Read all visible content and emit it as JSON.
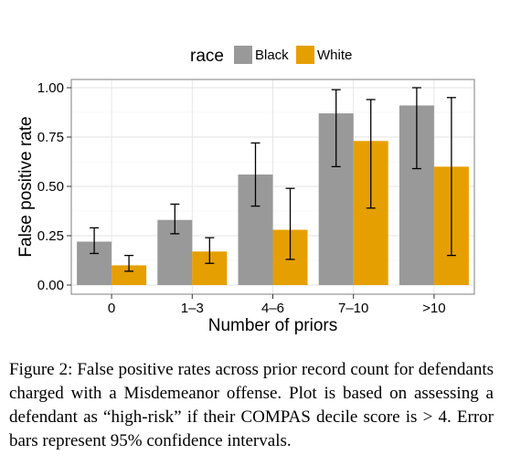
{
  "chart_data": {
    "type": "bar",
    "xlabel": "Number of priors",
    "ylabel": "False positive rate",
    "ylim": [
      0,
      1.0
    ],
    "yticks": [
      0.0,
      0.25,
      0.5,
      0.75,
      1.0
    ],
    "ytick_labels": [
      "0.00",
      "0.25",
      "0.50",
      "0.75",
      "1.00"
    ],
    "categories": [
      "0",
      "1–3",
      "4–6",
      "7–10",
      ">10"
    ],
    "legend": {
      "title": "race",
      "position": "top"
    },
    "grid": true,
    "series": [
      {
        "name": "Black",
        "color": "#999999",
        "values": [
          0.22,
          0.33,
          0.56,
          0.87,
          0.91
        ],
        "ci_low": [
          0.16,
          0.26,
          0.4,
          0.6,
          0.59
        ],
        "ci_high": [
          0.29,
          0.41,
          0.72,
          0.99,
          1.0
        ]
      },
      {
        "name": "White",
        "color": "#E69F00",
        "values": [
          0.1,
          0.17,
          0.28,
          0.73,
          0.6
        ],
        "ci_low": [
          0.07,
          0.11,
          0.13,
          0.39,
          0.15
        ],
        "ci_high": [
          0.15,
          0.24,
          0.49,
          0.94,
          0.95
        ]
      }
    ]
  },
  "caption": "Figure 2: False positive rates across prior record count for defendants charged with a Misdemeanor offense. Plot is based on assessing a defendant as “high-risk” if their COMPAS decile score is > 4. Error bars represent 95% confidence intervals."
}
